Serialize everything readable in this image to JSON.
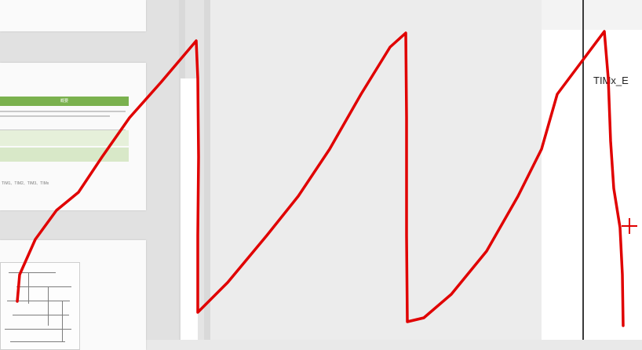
{
  "thumbnails": {
    "slide2": {
      "header_text": "概要",
      "tag_line": "TIM1、TIM2、TIM3、TIMx"
    }
  },
  "right_pane": {
    "label": "TIMx_E"
  },
  "annotation": {
    "stroke_color": "#e00000",
    "shape": "sawtooth-wave"
  }
}
